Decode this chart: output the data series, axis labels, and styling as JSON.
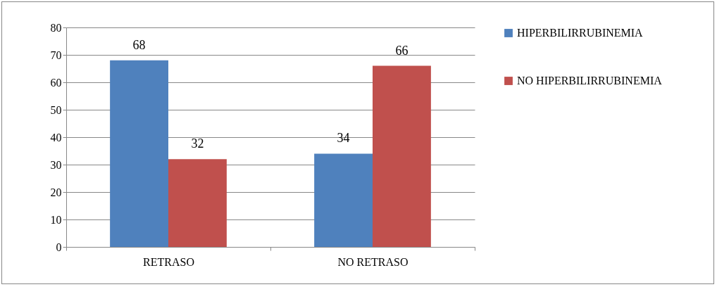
{
  "chart_data": {
    "type": "bar",
    "categories": [
      "RETRASO",
      "NO RETRASO"
    ],
    "series": [
      {
        "name": "HIPERBILIRRUBINEMIA",
        "color": "#4f81bd",
        "values": [
          68,
          34
        ]
      },
      {
        "name": "NO HIPERBILIRRUBINEMIA",
        "color": "#c0504d",
        "values": [
          32,
          66
        ]
      }
    ],
    "ylim": [
      0,
      80
    ],
    "yticks": [
      0,
      10,
      20,
      30,
      40,
      50,
      60,
      70,
      80
    ],
    "grid": "y",
    "legend": "right",
    "data_labels": true
  }
}
